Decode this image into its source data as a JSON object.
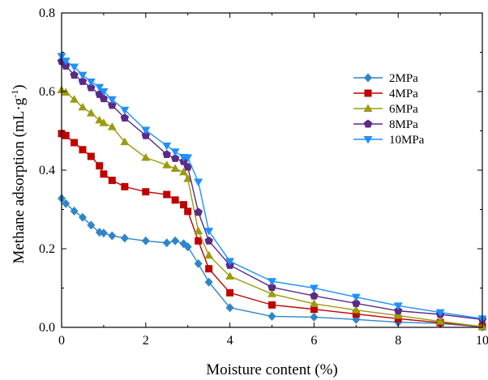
{
  "chart_data": {
    "type": "line",
    "title": "",
    "xlabel": "Moisture content (%)",
    "ylabel": "Methane adsorption (mL·g",
    "ylabel_superscript": "-1",
    "ylabel_suffix": ")",
    "xlim": [
      0,
      10
    ],
    "ylim": [
      0,
      0.8
    ],
    "xticks": [
      0,
      2,
      4,
      6,
      8,
      10
    ],
    "xtick_labels": [
      "0",
      "2",
      "4",
      "6",
      "8",
      "10"
    ],
    "yticks": [
      0.0,
      0.2,
      0.4,
      0.6,
      0.8
    ],
    "ytick_labels": [
      "0.0",
      "0.2",
      "0.4",
      "0.6",
      "0.8"
    ],
    "grid": false,
    "legend_position": "top-right",
    "series": [
      {
        "name": "2MPa",
        "color": "#2E86C8",
        "marker": "diamond",
        "x": [
          0,
          0.1,
          0.3,
          0.5,
          0.7,
          0.9,
          1.0,
          1.2,
          1.5,
          2.0,
          2.5,
          2.7,
          2.9,
          3.0,
          3.25,
          3.5,
          4,
          5,
          6,
          7,
          8,
          9,
          10
        ],
        "y": [
          0.328,
          0.315,
          0.296,
          0.28,
          0.26,
          0.242,
          0.24,
          0.233,
          0.227,
          0.22,
          0.215,
          0.22,
          0.213,
          0.205,
          0.162,
          0.115,
          0.05,
          0.028,
          0.026,
          0.02,
          0.013,
          0.01,
          0.001
        ]
      },
      {
        "name": "4MPa",
        "color": "#C00000",
        "marker": "square",
        "x": [
          0,
          0.1,
          0.3,
          0.5,
          0.7,
          0.9,
          1.0,
          1.2,
          1.5,
          2.0,
          2.5,
          2.7,
          2.9,
          3.0,
          3.25,
          3.5,
          4,
          5,
          6,
          7,
          8,
          9,
          10
        ],
        "y": [
          0.493,
          0.488,
          0.47,
          0.452,
          0.435,
          0.411,
          0.39,
          0.374,
          0.358,
          0.345,
          0.338,
          0.324,
          0.312,
          0.295,
          0.22,
          0.149,
          0.088,
          0.057,
          0.046,
          0.034,
          0.022,
          0.012,
          0.002
        ]
      },
      {
        "name": "6MPa",
        "color": "#9B9B10",
        "marker": "triangle-up",
        "x": [
          0,
          0.1,
          0.3,
          0.5,
          0.7,
          0.9,
          1.0,
          1.2,
          1.5,
          2.0,
          2.5,
          2.7,
          2.9,
          3.0,
          3.25,
          3.5,
          4,
          5,
          6,
          7,
          8,
          9,
          10
        ],
        "y": [
          0.604,
          0.598,
          0.58,
          0.56,
          0.545,
          0.527,
          0.52,
          0.51,
          0.472,
          0.432,
          0.413,
          0.404,
          0.395,
          0.378,
          0.245,
          0.183,
          0.13,
          0.085,
          0.06,
          0.044,
          0.03,
          0.015,
          0.002
        ]
      },
      {
        "name": "8MPa",
        "color": "#5B2A86",
        "marker": "pentagon",
        "x": [
          0,
          0.1,
          0.3,
          0.5,
          0.7,
          0.9,
          1.0,
          1.2,
          1.5,
          2.0,
          2.5,
          2.7,
          2.9,
          3.0,
          3.25,
          3.5,
          4,
          5,
          6,
          7,
          8,
          9,
          10
        ],
        "y": [
          0.677,
          0.665,
          0.642,
          0.626,
          0.61,
          0.593,
          0.582,
          0.565,
          0.533,
          0.488,
          0.44,
          0.43,
          0.422,
          0.408,
          0.293,
          0.22,
          0.158,
          0.102,
          0.08,
          0.061,
          0.042,
          0.033,
          0.02
        ]
      },
      {
        "name": "10MPa",
        "color": "#1E90FF",
        "marker": "triangle-down",
        "x": [
          0,
          0.1,
          0.3,
          0.5,
          0.7,
          0.9,
          1.0,
          1.2,
          1.5,
          2.0,
          2.5,
          2.7,
          2.9,
          3.0,
          3.25,
          3.5,
          4,
          5,
          6,
          7,
          8,
          9,
          10
        ],
        "y": [
          0.69,
          0.678,
          0.663,
          0.642,
          0.625,
          0.611,
          0.6,
          0.58,
          0.553,
          0.502,
          0.462,
          0.447,
          0.433,
          0.432,
          0.37,
          0.245,
          0.168,
          0.117,
          0.1,
          0.077,
          0.055,
          0.038,
          0.022
        ]
      }
    ]
  }
}
